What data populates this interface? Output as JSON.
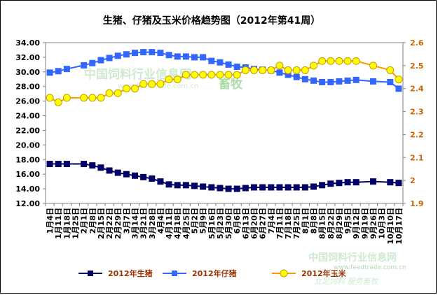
{
  "chart_data": {
    "type": "line",
    "title": "生猪、仔猪及玉米价格趋势图（2012年第41周）",
    "xlabel": "",
    "ylabel": "",
    "ylim": [
      12,
      34
    ],
    "y_ticks": [
      "12.00",
      "14.00",
      "16.00",
      "18.00",
      "20.00",
      "22.00",
      "24.00",
      "26.00",
      "28.00",
      "30.00",
      "32.00",
      "34.00"
    ],
    "y2lim": [
      1.9,
      2.6
    ],
    "y2_ticks": [
      "1.9",
      "2",
      "2.1",
      "2.2",
      "2.3",
      "2.4",
      "2.5",
      "2.6"
    ],
    "categories": [
      "1月4日",
      "1月11日",
      "1月18日",
      "1月25日",
      "2月1日",
      "2月8日",
      "2月15日",
      "2月22日",
      "2月29日",
      "3月7日",
      "3月14日",
      "3月21日",
      "3月28日",
      "4月4日",
      "4月11日",
      "4月18日",
      "4月25日",
      "5月2日",
      "5月9日",
      "5月16日",
      "5月23日",
      "5月30日",
      "6月6日",
      "6月13日",
      "6月20日",
      "6月27日",
      "7月4日",
      "7月11日",
      "7月18日",
      "7月25日",
      "8月1日",
      "8月8日",
      "8月15日",
      "8月22日",
      "8月29日",
      "9月5日",
      "9月12日",
      "9月19日",
      "9月26日",
      "10月3日",
      "10月10日",
      "10月17日"
    ],
    "series": [
      {
        "name": "2012年生猪",
        "axis": "left",
        "color": "#000066",
        "marker": "square",
        "values": [
          17.4,
          17.4,
          17.4,
          null,
          17.4,
          17.2,
          16.9,
          16.5,
          16.2,
          16.0,
          15.8,
          15.6,
          15.4,
          15.0,
          14.6,
          14.5,
          14.5,
          14.4,
          14.3,
          14.2,
          14.1,
          14.0,
          14.0,
          14.1,
          14.2,
          14.2,
          14.2,
          14.2,
          14.2,
          14.2,
          14.2,
          14.3,
          14.5,
          14.7,
          14.8,
          14.9,
          14.9,
          null,
          15.0,
          null,
          14.9,
          14.8
        ]
      },
      {
        "name": "2012年仔猪",
        "axis": "left",
        "color": "#3366ff",
        "marker": "square",
        "values": [
          29.9,
          30.1,
          30.4,
          null,
          30.9,
          31.2,
          31.6,
          31.9,
          32.2,
          32.4,
          32.6,
          32.7,
          32.7,
          32.6,
          32.3,
          32.1,
          32.1,
          32.0,
          32.0,
          31.5,
          31.3,
          31.0,
          30.7,
          30.6,
          30.4,
          30.3,
          30.2,
          29.9,
          29.6,
          29.3,
          29.0,
          28.8,
          28.6,
          28.6,
          28.7,
          28.8,
          28.9,
          null,
          28.7,
          null,
          28.6,
          27.7
        ]
      },
      {
        "name": "2012年玉米",
        "axis": "right",
        "color": "#ff9900",
        "marker": "circle",
        "values": [
          2.36,
          2.34,
          2.36,
          null,
          2.36,
          2.36,
          2.36,
          2.38,
          2.38,
          2.4,
          2.4,
          2.42,
          2.42,
          2.42,
          2.44,
          2.44,
          2.46,
          2.46,
          2.46,
          2.46,
          2.46,
          2.46,
          2.46,
          2.48,
          2.48,
          2.48,
          2.48,
          2.5,
          2.48,
          2.48,
          2.48,
          2.5,
          2.52,
          2.52,
          2.52,
          2.52,
          2.52,
          null,
          2.5,
          null,
          2.48,
          2.44
        ]
      }
    ],
    "legend_position": "bottom",
    "grid": false
  },
  "watermarks": {
    "site_name": "中国饲料行业信息网",
    "site_url": "www.feedtrade.com.cn",
    "mark": "畜牧",
    "slogan": "立足饲料  服务畜牧"
  }
}
